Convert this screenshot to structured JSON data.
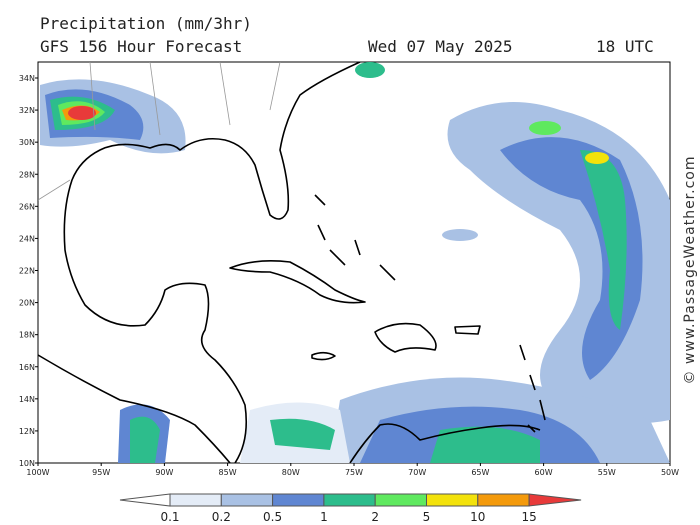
{
  "header": {
    "title": "Precipitation (mm/3hr)",
    "subtitle": "GFS 156 Hour Forecast",
    "date": "Wed 07 May 2025",
    "time": "18 UTC"
  },
  "map": {
    "lat_labels": [
      "34N",
      "32N",
      "30N",
      "28N",
      "26N",
      "24N",
      "22N",
      "20N",
      "18N",
      "16N",
      "14N",
      "12N",
      "10N"
    ],
    "lon_labels": [
      "100W",
      "95W",
      "90W",
      "85W",
      "80W",
      "75W",
      "70W",
      "65W",
      "60W",
      "55W",
      "50W"
    ]
  },
  "legend": {
    "labels": [
      "0.1",
      "0.2",
      "0.5",
      "1",
      "2",
      "5",
      "10",
      "15"
    ],
    "colors": [
      "#ffffff",
      "#e4ecf7",
      "#a9c1e4",
      "#5f86d2",
      "#2dbd8c",
      "#5fe95f",
      "#f3e20b",
      "#f49a0c",
      "#e83a3a"
    ]
  },
  "watermark": "© www.PassageWeather.com"
}
